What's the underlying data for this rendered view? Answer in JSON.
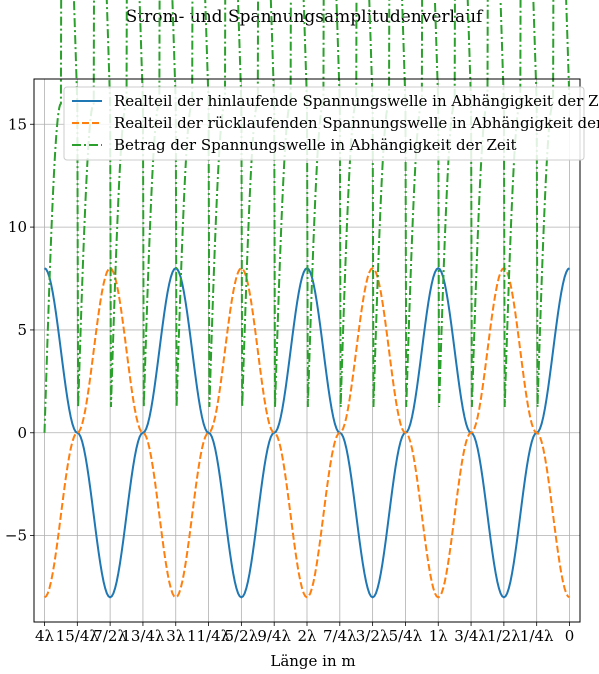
{
  "chart_data": {
    "type": "line",
    "title": "Strom- und Spannungsamplitudenverlauf",
    "xlabel": "Länge in m",
    "ylabel": "",
    "xlim": [
      4.08,
      -0.08
    ],
    "ylim": [
      -9.2,
      17.2
    ],
    "x_reversed": true,
    "grid": true,
    "legend_position": "top",
    "x_ticks": [
      {
        "value": 4.0,
        "label": "4λ"
      },
      {
        "value": 3.75,
        "label": "15/4λ"
      },
      {
        "value": 3.5,
        "label": "7/2λ"
      },
      {
        "value": 3.25,
        "label": "13/4λ"
      },
      {
        "value": 3.0,
        "label": "3λ"
      },
      {
        "value": 2.75,
        "label": "11/4λ"
      },
      {
        "value": 2.5,
        "label": "5/2λ"
      },
      {
        "value": 2.25,
        "label": "9/4λ"
      },
      {
        "value": 2.0,
        "label": "2λ"
      },
      {
        "value": 1.75,
        "label": "7/4λ"
      },
      {
        "value": 1.5,
        "label": "3/2λ"
      },
      {
        "value": 1.25,
        "label": "5/4λ"
      },
      {
        "value": 1.0,
        "label": "1λ"
      },
      {
        "value": 0.75,
        "label": "3/4λ"
      },
      {
        "value": 0.5,
        "label": "1/2λ"
      },
      {
        "value": 0.25,
        "label": "1/4λ"
      },
      {
        "value": 0.0,
        "label": "0"
      }
    ],
    "y_ticks": [
      {
        "value": 15,
        "label": "15"
      },
      {
        "value": 10,
        "label": "10"
      },
      {
        "value": 5,
        "label": "5"
      },
      {
        "value": 0,
        "label": "0"
      },
      {
        "value": -5,
        "label": "−5"
      }
    ],
    "series": [
      {
        "name": "Realteil der hinlaufende Spannungswelle in Abhängigkeit der Zeit",
        "color": "#1f77b4",
        "style": "solid",
        "x": [
          4.0,
          3.75,
          3.5,
          3.25,
          3.0,
          2.75,
          2.5,
          2.25,
          2.0,
          1.75,
          1.5,
          1.25,
          1.0,
          0.75,
          0.5,
          0.25,
          0.0
        ],
        "values": [
          8,
          0,
          -8,
          0,
          8,
          0,
          -8,
          0,
          8,
          0,
          -8,
          0,
          8,
          0,
          -8,
          0,
          8
        ]
      },
      {
        "name": "Realteil der rücklaufenden Spannungswelle in Abhängigkeit der Zeit",
        "color": "#ff7f0e",
        "style": "dashed",
        "x": [
          4.0,
          3.75,
          3.5,
          3.25,
          3.0,
          2.75,
          2.5,
          2.25,
          2.0,
          1.75,
          1.5,
          1.25,
          1.0,
          0.75,
          0.5,
          0.25,
          0.0
        ],
        "values": [
          -8,
          0,
          8,
          0,
          -8,
          0,
          8,
          0,
          -8,
          0,
          8,
          0,
          -8,
          0,
          8,
          0,
          -8
        ]
      },
      {
        "name": "Betrag der Spannungswelle in Abhängigkeit der Zeit",
        "color": "#2ca02c",
        "style": "dashdot",
        "x": [
          4.0,
          3.875,
          3.75,
          3.625,
          3.5,
          3.375,
          3.25,
          3.125,
          3.0,
          2.875,
          2.75,
          2.625,
          2.5,
          2.375,
          2.25,
          2.125,
          2.0,
          1.875,
          1.75,
          1.625,
          1.5,
          1.375,
          1.25,
          1.125,
          1.0,
          0.875,
          0.75,
          0.625,
          0.5,
          0.375,
          0.25,
          0.125,
          0.0
        ],
        "values": [
          0,
          16,
          0,
          16,
          0,
          16,
          0,
          16,
          0,
          16,
          0,
          16,
          0,
          16,
          0,
          16,
          0,
          16,
          0,
          16,
          0,
          16,
          0,
          16,
          0,
          16,
          0,
          16,
          0,
          16,
          0,
          16,
          0
        ]
      }
    ]
  }
}
